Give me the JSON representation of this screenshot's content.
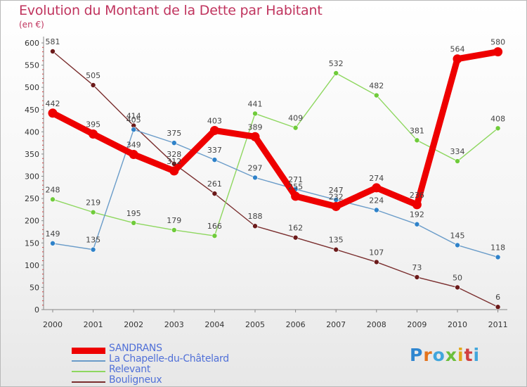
{
  "title": "Evolution du Montant de la Dette par Habitant",
  "unit": "(en €)",
  "logo_text": "Proxiti",
  "chart_data": {
    "type": "line",
    "x": [
      "2000",
      "2001",
      "2002",
      "2003",
      "2004",
      "2005",
      "2006",
      "2007",
      "2008",
      "2009",
      "2010",
      "2011"
    ],
    "ylim": [
      0,
      600
    ],
    "yticks": [
      0,
      50,
      100,
      150,
      200,
      250,
      300,
      350,
      400,
      450,
      500,
      550,
      600
    ],
    "grid": false,
    "legend_position": "bottom-left",
    "series": [
      {
        "name": "SANDRANS",
        "color": "#ee0000",
        "values": [
          442,
          395,
          349,
          312,
          403,
          389,
          255,
          232,
          274,
          236,
          564,
          580
        ]
      },
      {
        "name": "La Chapelle-du-Châtelard",
        "color": "#6a9cc9",
        "values": [
          149,
          135,
          405,
          375,
          337,
          297,
          271,
          247,
          224,
          192,
          145,
          118
        ]
      },
      {
        "name": "Relevant",
        "color": "#8ed75f",
        "values": [
          248,
          219,
          195,
          179,
          166,
          441,
          409,
          532,
          482,
          381,
          334,
          408
        ]
      },
      {
        "name": "Bouligneux",
        "color": "#7a2e2e",
        "values": [
          581,
          505,
          414,
          328,
          261,
          188,
          162,
          135,
          107,
          73,
          50,
          6
        ]
      }
    ]
  }
}
